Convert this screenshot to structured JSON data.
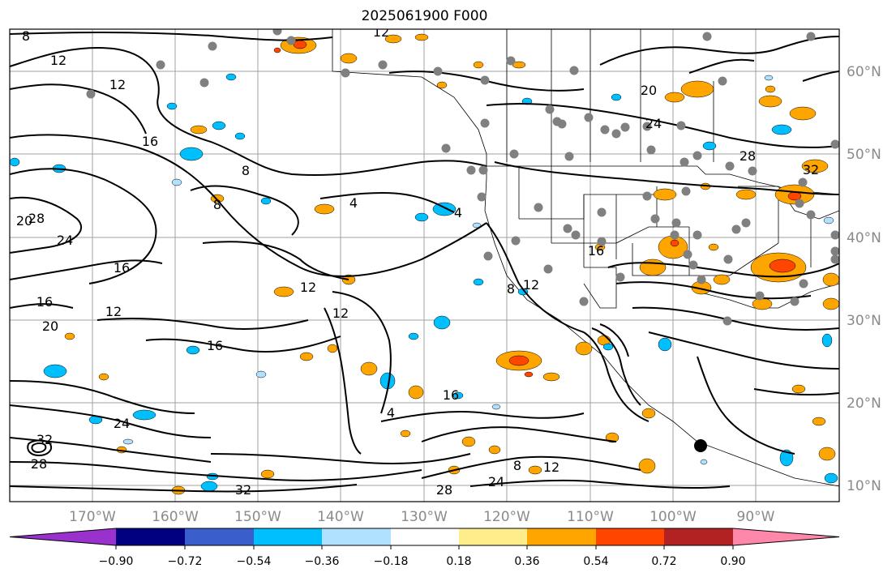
{
  "title": "2025061900 F000",
  "lon_labels": [
    "170°W",
    "160°W",
    "150°W",
    "140°W",
    "130°W",
    "120°W",
    "110°W",
    "100°W",
    "90°W"
  ],
  "lat_labels": [
    "60°N",
    "50°N",
    "40°N",
    "30°N",
    "20°N",
    "10°N"
  ],
  "colorbar": {
    "colors": [
      "#9932cc",
      "#000080",
      "#3a5fcd",
      "#00bfff",
      "#b0e2ff",
      "#ffffff",
      "#ffec8b",
      "#ffa500",
      "#ff4500",
      "#b22222",
      "#ff88aa"
    ],
    "labels": [
      "−0.90",
      "−0.72",
      "−0.54",
      "−0.36",
      "−0.18",
      "0.18",
      "0.36",
      "0.54",
      "0.72",
      "0.90"
    ]
  },
  "contour_labels": [
    "8",
    "12",
    "12",
    "12",
    "16",
    "20",
    "24",
    "28",
    "16",
    "12",
    "8",
    "4",
    "4",
    "8",
    "12",
    "12",
    "16",
    "16",
    "20",
    "24",
    "28",
    "32",
    "32",
    "24",
    "28",
    "8",
    "12",
    "16",
    "4",
    "8",
    "12",
    "16",
    "20",
    "24",
    "28",
    "32"
  ],
  "colors": {
    "fill_orange": "#ffa500",
    "fill_red": "#ff4500",
    "fill_cyan": "#00bfff",
    "fill_lightblue": "#b0e2ff",
    "dots": "#808080",
    "grid": "#a0a0a0"
  }
}
